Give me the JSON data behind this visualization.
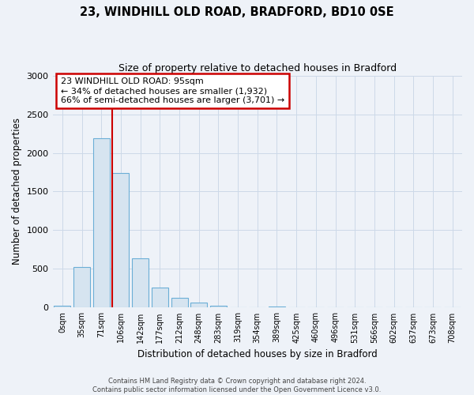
{
  "title": "23, WINDHILL OLD ROAD, BRADFORD, BD10 0SE",
  "subtitle": "Size of property relative to detached houses in Bradford",
  "xlabel": "Distribution of detached houses by size in Bradford",
  "ylabel": "Number of detached properties",
  "bar_labels": [
    "0sqm",
    "35sqm",
    "71sqm",
    "106sqm",
    "142sqm",
    "177sqm",
    "212sqm",
    "248sqm",
    "283sqm",
    "319sqm",
    "354sqm",
    "389sqm",
    "425sqm",
    "460sqm",
    "496sqm",
    "531sqm",
    "566sqm",
    "602sqm",
    "637sqm",
    "673sqm",
    "708sqm"
  ],
  "bar_values": [
    25,
    520,
    2190,
    1740,
    640,
    260,
    130,
    70,
    25,
    0,
    0,
    18,
    4,
    0,
    0,
    0,
    0,
    0,
    0,
    0,
    0
  ],
  "bar_color": "#d6e4f0",
  "bar_edge_color": "#6baed6",
  "vline_color": "#cc0000",
  "annotation_line1": "23 WINDHILL OLD ROAD: 95sqm",
  "annotation_line2": "← 34% of detached houses are smaller (1,932)",
  "annotation_line3": "66% of semi-detached houses are larger (3,701) →",
  "annotation_box_color": "#ffffff",
  "annotation_box_edge_color": "#cc0000",
  "ylim": [
    0,
    3000
  ],
  "yticks": [
    0,
    500,
    1000,
    1500,
    2000,
    2500,
    3000
  ],
  "footer1": "Contains HM Land Registry data © Crown copyright and database right 2024.",
  "footer2": "Contains public sector information licensed under the Open Government Licence v3.0.",
  "grid_color": "#ccd9e8",
  "background_color": "#eef2f8"
}
